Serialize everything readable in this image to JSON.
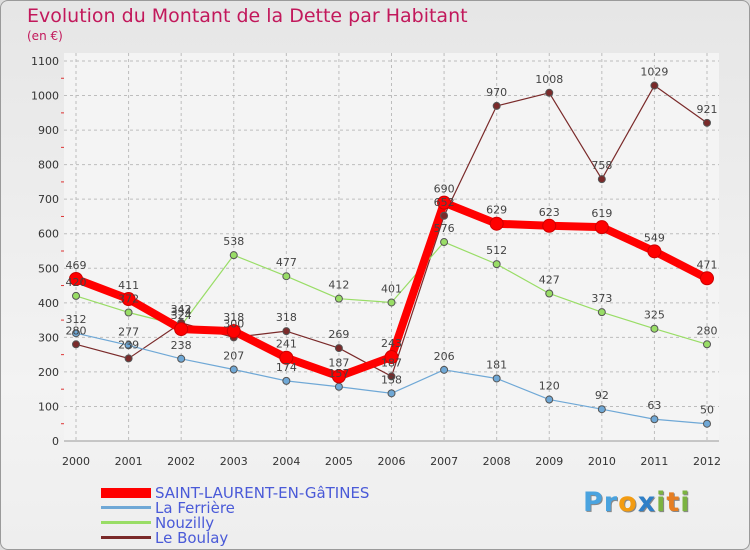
{
  "title": "Evolution du Montant de la Dette par Habitant",
  "unit": "(en €)",
  "logo": {
    "parts": [
      {
        "t": "P",
        "c": "#4aa3df"
      },
      {
        "t": "r",
        "c": "#4aa3df"
      },
      {
        "t": "o",
        "c": "#f39c12"
      },
      {
        "t": "x",
        "c": "#2f80c8"
      },
      {
        "t": "i",
        "c": "#7cb342"
      },
      {
        "t": "t",
        "c": "#e67e22"
      },
      {
        "t": "i",
        "c": "#7cb342"
      }
    ]
  },
  "chart_data": {
    "type": "line",
    "x": [
      "2000",
      "2001",
      "2002",
      "2003",
      "2004",
      "2005",
      "2006",
      "2007",
      "2008",
      "2009",
      "2010",
      "2011",
      "2012"
    ],
    "ylim": [
      0,
      1100
    ],
    "yticks": [
      0,
      100,
      200,
      300,
      400,
      500,
      600,
      700,
      800,
      900,
      1000,
      1100
    ],
    "grid": true,
    "legend_position": "bottom-left",
    "series": [
      {
        "name": "SAINT-LAURENT-EN-GâTINES",
        "color": "#ff0000",
        "width": 8,
        "values": [
          469,
          411,
          324,
          318,
          241,
          187,
          243,
          690,
          629,
          623,
          619,
          549,
          471
        ]
      },
      {
        "name": "La Ferrière",
        "color": "#6fa8d6",
        "width": 1.2,
        "values": [
          312,
          277,
          238,
          207,
          174,
          157,
          138,
          206,
          181,
          120,
          92,
          63,
          50
        ]
      },
      {
        "name": "Nouzilly",
        "color": "#99dd66",
        "width": 1.2,
        "values": [
          420,
          372,
          334,
          538,
          477,
          412,
          401,
          576,
          512,
          427,
          373,
          325,
          280
        ]
      },
      {
        "name": "Le Boulay",
        "color": "#7a2a2a",
        "width": 1.2,
        "values": [
          280,
          239,
          342,
          300,
          318,
          269,
          187,
          652,
          970,
          1008,
          758,
          1029,
          921
        ]
      }
    ]
  }
}
